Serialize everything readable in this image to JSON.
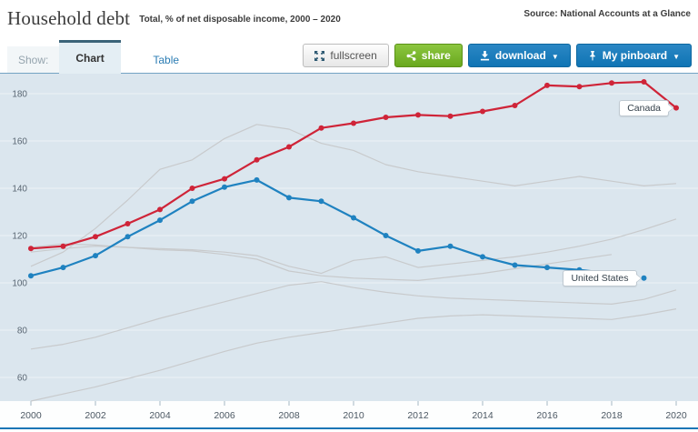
{
  "header": {
    "title": "Household debt",
    "subtitle": "Total, % of net disposable income, 2000 – 2020",
    "source": "Source: National Accounts at a Glance"
  },
  "toolbar": {
    "show_label": "Show:",
    "tabs": [
      {
        "label": "Chart",
        "active": true
      },
      {
        "label": "Table",
        "active": false
      }
    ],
    "buttons": {
      "fullscreen": "fullscreen",
      "share": "share",
      "download": "download",
      "pinboard": "My pinboard",
      "caret": "▼"
    },
    "accent_colors": {
      "button_blue": "#1878b8",
      "button_green": "#74b02c"
    }
  },
  "chart_data": {
    "type": "line",
    "title": "Household debt",
    "ylabel": "% of net disposable income",
    "ylim": [
      50,
      190
    ],
    "grid": true,
    "yticks": [
      60,
      80,
      100,
      120,
      140,
      160,
      180
    ],
    "xticks": [
      2000,
      2002,
      2004,
      2006,
      2008,
      2010,
      2012,
      2014,
      2016,
      2018,
      2020
    ],
    "years": [
      2000,
      2001,
      2002,
      2003,
      2004,
      2005,
      2006,
      2007,
      2008,
      2009,
      2010,
      2011,
      2012,
      2013,
      2014,
      2015,
      2016,
      2017,
      2018,
      2019,
      2020
    ],
    "series": [
      {
        "name": "Canada",
        "color": "#cf2438",
        "values": [
          114.5,
          115.5,
          119.5,
          125,
          131,
          140,
          144,
          152,
          157.5,
          165.5,
          167.5,
          170,
          171,
          170.5,
          172.5,
          175,
          183.5,
          183,
          184.5,
          185,
          174
        ]
      },
      {
        "name": "United States",
        "color": "#1f82c0",
        "last_point_detached": true,
        "values": [
          103,
          106.5,
          111.5,
          119.5,
          126.5,
          134.5,
          140.5,
          143.5,
          136,
          134.5,
          127.5,
          120,
          113.5,
          115.5,
          111,
          107.5,
          106.5,
          105.5,
          104,
          102
        ]
      }
    ],
    "background_series": [
      {
        "name": "other-country-1",
        "values": [
          107,
          113,
          123,
          135,
          148,
          152,
          161,
          167,
          165,
          159,
          156,
          150,
          147,
          145,
          143,
          141,
          143,
          145,
          143,
          141,
          142
        ]
      },
      {
        "name": "other-country-2",
        "values": [
          115,
          116.5,
          116,
          115,
          114,
          113.5,
          112,
          110,
          105,
          103,
          102,
          101.5,
          101,
          102.5,
          104,
          106,
          108,
          110,
          112
        ]
      },
      {
        "name": "other-country-3",
        "values": [
          113,
          114.5,
          115.5,
          115,
          114.5,
          114,
          113,
          111.5,
          107,
          104,
          109.5,
          111,
          106.5,
          108,
          109.5,
          111,
          113,
          115.5,
          118.5,
          122.5,
          127
        ]
      },
      {
        "name": "other-country-4",
        "values": [
          72,
          74,
          77,
          81,
          85,
          88.5,
          92,
          95.5,
          99,
          100.5,
          98,
          96,
          94.5,
          93.5,
          93,
          92.5,
          92,
          91.5,
          91,
          93,
          97
        ]
      },
      {
        "name": "other-country-5",
        "values": [
          50,
          53,
          56,
          59.5,
          63,
          67,
          71,
          74.5,
          77,
          79,
          81,
          83,
          85,
          86,
          86.5,
          86,
          85.5,
          85,
          84.5,
          86.5,
          89
        ]
      }
    ],
    "colors": {
      "plot_bg": "#dbe6ee",
      "grid": "#eef3f7",
      "background_line": "#c8cacc",
      "axis_text": "#5a6773",
      "tick_mark": "#a5b8c4",
      "axis_strip_bg": "#fdfefe"
    },
    "legend_position": "inline-labels"
  }
}
